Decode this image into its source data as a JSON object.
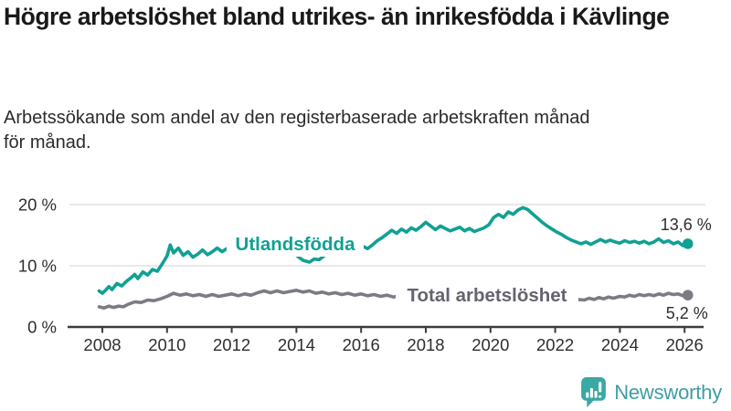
{
  "header": {
    "title": "Högre arbetslöshet bland utrikes- än inrikesfödda i Kävlinge",
    "subtitle": "Arbetssökande som andel av den registerbaserade arbetskraften månad för månad."
  },
  "footer": {
    "brand": "Newsworthy"
  },
  "colors": {
    "accent_teal": "#11A094",
    "series_gray": "#7B7B83",
    "label_gray": "#64646E",
    "axis": "#3C3C3C",
    "grid": "#DADADA",
    "text_dark": "#191919",
    "tick_text": "#2E2E2E",
    "logo_teal": "#3E9DA3"
  },
  "chart_data": {
    "type": "line",
    "title": "Högre arbetslöshet bland utrikes- än inrikesfödda i Kävlinge",
    "xlabel": "",
    "ylabel": "",
    "grid": "horizontal",
    "legend_position": "inline-labels",
    "x_range": [
      2007.9,
      2026.1
    ],
    "ylim": [
      0,
      21.5
    ],
    "x_tick_values": [
      2008,
      2010,
      2012,
      2014,
      2016,
      2018,
      2020,
      2022,
      2024,
      2026
    ],
    "x_tick_labels": [
      "2008",
      "2010",
      "2012",
      "2014",
      "2016",
      "2018",
      "2020",
      "2022",
      "2024",
      "2026"
    ],
    "y_tick_values": [
      0,
      10,
      20
    ],
    "y_tick_labels": [
      "0 %",
      "10 %",
      "20 %"
    ],
    "series": [
      {
        "name": "Utlandsfödda",
        "color": "#11A094",
        "end_label": "13,6 %",
        "end_value": 13.6,
        "points": [
          [
            2007.9,
            5.9
          ],
          [
            2008.0,
            5.5
          ],
          [
            2008.1,
            6.0
          ],
          [
            2008.2,
            6.6
          ],
          [
            2008.3,
            6.1
          ],
          [
            2008.45,
            7.1
          ],
          [
            2008.6,
            6.7
          ],
          [
            2008.75,
            7.5
          ],
          [
            2008.9,
            8.1
          ],
          [
            2009.0,
            8.6
          ],
          [
            2009.1,
            7.9
          ],
          [
            2009.25,
            9.0
          ],
          [
            2009.4,
            8.5
          ],
          [
            2009.55,
            9.4
          ],
          [
            2009.7,
            9.1
          ],
          [
            2009.85,
            10.3
          ],
          [
            2010.0,
            11.6
          ],
          [
            2010.1,
            13.4
          ],
          [
            2010.2,
            12.1
          ],
          [
            2010.35,
            12.9
          ],
          [
            2010.5,
            11.7
          ],
          [
            2010.65,
            12.3
          ],
          [
            2010.8,
            11.4
          ],
          [
            2010.95,
            11.9
          ],
          [
            2011.1,
            12.6
          ],
          [
            2011.25,
            11.8
          ],
          [
            2011.4,
            12.3
          ],
          [
            2011.55,
            12.9
          ],
          [
            2011.7,
            12.3
          ],
          [
            2011.85,
            12.8
          ],
          [
            2012.0,
            12.4
          ],
          [
            2012.15,
            13.0
          ],
          [
            2012.3,
            12.6
          ],
          [
            2012.45,
            13.1
          ],
          [
            2012.6,
            12.7
          ],
          [
            2012.75,
            13.2
          ],
          [
            2012.9,
            12.9
          ],
          [
            2013.05,
            13.4
          ],
          [
            2013.2,
            13.0
          ],
          [
            2013.35,
            13.3
          ],
          [
            2013.5,
            12.9
          ],
          [
            2013.65,
            13.1
          ],
          [
            2013.8,
            12.4
          ],
          [
            2014.0,
            11.7
          ],
          [
            2014.2,
            10.9
          ],
          [
            2014.4,
            10.6
          ],
          [
            2014.55,
            11.1
          ],
          [
            2014.7,
            11.0
          ],
          [
            2014.85,
            11.6
          ],
          [
            2015.0,
            12.2
          ],
          [
            2015.15,
            12.9
          ],
          [
            2015.3,
            12.5
          ],
          [
            2015.45,
            13.0
          ],
          [
            2015.6,
            13.3
          ],
          [
            2015.75,
            13.5
          ],
          [
            2015.9,
            12.9
          ],
          [
            2016.05,
            13.2
          ],
          [
            2016.2,
            12.8
          ],
          [
            2016.35,
            13.4
          ],
          [
            2016.5,
            14.1
          ],
          [
            2016.65,
            14.6
          ],
          [
            2016.8,
            15.2
          ],
          [
            2016.95,
            15.8
          ],
          [
            2017.1,
            15.3
          ],
          [
            2017.25,
            16.0
          ],
          [
            2017.4,
            15.5
          ],
          [
            2017.55,
            16.2
          ],
          [
            2017.7,
            15.8
          ],
          [
            2017.85,
            16.4
          ],
          [
            2018.0,
            17.1
          ],
          [
            2018.15,
            16.5
          ],
          [
            2018.3,
            15.9
          ],
          [
            2018.45,
            16.5
          ],
          [
            2018.6,
            16.1
          ],
          [
            2018.75,
            15.7
          ],
          [
            2018.9,
            16.0
          ],
          [
            2019.05,
            16.3
          ],
          [
            2019.2,
            15.7
          ],
          [
            2019.35,
            16.1
          ],
          [
            2019.5,
            15.6
          ],
          [
            2019.65,
            15.9
          ],
          [
            2019.8,
            16.2
          ],
          [
            2019.95,
            16.7
          ],
          [
            2020.1,
            17.9
          ],
          [
            2020.25,
            18.4
          ],
          [
            2020.4,
            17.9
          ],
          [
            2020.55,
            18.8
          ],
          [
            2020.7,
            18.4
          ],
          [
            2020.85,
            19.1
          ],
          [
            2021.0,
            19.5
          ],
          [
            2021.15,
            19.2
          ],
          [
            2021.3,
            18.5
          ],
          [
            2021.45,
            17.8
          ],
          [
            2021.6,
            17.1
          ],
          [
            2021.75,
            16.5
          ],
          [
            2021.9,
            16.0
          ],
          [
            2022.05,
            15.5
          ],
          [
            2022.2,
            15.1
          ],
          [
            2022.35,
            14.6
          ],
          [
            2022.5,
            14.2
          ],
          [
            2022.65,
            13.9
          ],
          [
            2022.8,
            13.6
          ],
          [
            2022.95,
            13.9
          ],
          [
            2023.1,
            13.5
          ],
          [
            2023.25,
            13.9
          ],
          [
            2023.4,
            14.3
          ],
          [
            2023.55,
            13.9
          ],
          [
            2023.7,
            14.2
          ],
          [
            2023.85,
            13.9
          ],
          [
            2024.0,
            13.7
          ],
          [
            2024.15,
            14.1
          ],
          [
            2024.3,
            13.8
          ],
          [
            2024.45,
            14.0
          ],
          [
            2024.6,
            13.7
          ],
          [
            2024.75,
            14.0
          ],
          [
            2024.9,
            13.6
          ],
          [
            2025.05,
            13.9
          ],
          [
            2025.2,
            14.4
          ],
          [
            2025.35,
            13.8
          ],
          [
            2025.5,
            14.1
          ],
          [
            2025.65,
            13.6
          ],
          [
            2025.8,
            13.9
          ],
          [
            2025.95,
            13.3
          ],
          [
            2026.1,
            13.6
          ]
        ]
      },
      {
        "name": "Total arbetslöshet",
        "color": "#7B7B83",
        "end_label": "5,2 %",
        "end_value": 5.2,
        "points": [
          [
            2007.9,
            3.3
          ],
          [
            2008.05,
            3.1
          ],
          [
            2008.2,
            3.4
          ],
          [
            2008.35,
            3.2
          ],
          [
            2008.5,
            3.4
          ],
          [
            2008.65,
            3.3
          ],
          [
            2008.8,
            3.7
          ],
          [
            2009.0,
            4.1
          ],
          [
            2009.2,
            4.0
          ],
          [
            2009.4,
            4.4
          ],
          [
            2009.6,
            4.3
          ],
          [
            2009.8,
            4.6
          ],
          [
            2010.0,
            5.0
          ],
          [
            2010.2,
            5.5
          ],
          [
            2010.4,
            5.2
          ],
          [
            2010.6,
            5.4
          ],
          [
            2010.8,
            5.1
          ],
          [
            2011.0,
            5.3
          ],
          [
            2011.2,
            5.0
          ],
          [
            2011.4,
            5.3
          ],
          [
            2011.6,
            5.0
          ],
          [
            2011.8,
            5.2
          ],
          [
            2012.0,
            5.4
          ],
          [
            2012.2,
            5.1
          ],
          [
            2012.4,
            5.4
          ],
          [
            2012.6,
            5.2
          ],
          [
            2012.8,
            5.6
          ],
          [
            2013.0,
            5.9
          ],
          [
            2013.2,
            5.6
          ],
          [
            2013.4,
            5.9
          ],
          [
            2013.6,
            5.6
          ],
          [
            2013.8,
            5.8
          ],
          [
            2014.0,
            6.0
          ],
          [
            2014.2,
            5.7
          ],
          [
            2014.4,
            5.9
          ],
          [
            2014.6,
            5.5
          ],
          [
            2014.8,
            5.7
          ],
          [
            2015.0,
            5.4
          ],
          [
            2015.2,
            5.6
          ],
          [
            2015.4,
            5.3
          ],
          [
            2015.6,
            5.5
          ],
          [
            2015.8,
            5.2
          ],
          [
            2016.0,
            5.4
          ],
          [
            2016.2,
            5.1
          ],
          [
            2016.4,
            5.3
          ],
          [
            2016.6,
            5.0
          ],
          [
            2016.8,
            5.2
          ],
          [
            2017.0,
            4.9
          ],
          [
            2017.2,
            5.1
          ],
          [
            2017.4,
            4.8
          ],
          [
            2017.6,
            5.0
          ],
          [
            2017.8,
            4.7
          ],
          [
            2018.0,
            4.9
          ],
          [
            2018.25,
            4.6
          ],
          [
            2018.5,
            4.8
          ],
          [
            2018.75,
            4.6
          ],
          [
            2019.0,
            4.5
          ],
          [
            2019.25,
            4.7
          ],
          [
            2019.5,
            4.9
          ],
          [
            2019.75,
            5.1
          ],
          [
            2020.0,
            5.3
          ],
          [
            2020.25,
            5.7
          ],
          [
            2020.5,
            5.9
          ],
          [
            2020.75,
            5.7
          ],
          [
            2021.0,
            5.5
          ],
          [
            2021.25,
            5.2
          ],
          [
            2021.5,
            5.0
          ],
          [
            2021.75,
            4.9
          ],
          [
            2022.0,
            4.8
          ],
          [
            2022.25,
            4.6
          ],
          [
            2022.5,
            4.4
          ],
          [
            2022.7,
            4.5
          ],
          [
            2022.9,
            4.4
          ],
          [
            2023.05,
            4.7
          ],
          [
            2023.2,
            4.5
          ],
          [
            2023.35,
            4.8
          ],
          [
            2023.5,
            4.6
          ],
          [
            2023.65,
            4.9
          ],
          [
            2023.8,
            4.7
          ],
          [
            2024.0,
            5.0
          ],
          [
            2024.15,
            4.9
          ],
          [
            2024.3,
            5.2
          ],
          [
            2024.45,
            5.0
          ],
          [
            2024.6,
            5.3
          ],
          [
            2024.75,
            5.1
          ],
          [
            2024.9,
            5.3
          ],
          [
            2025.05,
            5.1
          ],
          [
            2025.2,
            5.4
          ],
          [
            2025.35,
            5.2
          ],
          [
            2025.5,
            5.5
          ],
          [
            2025.65,
            5.3
          ],
          [
            2025.8,
            5.4
          ],
          [
            2025.95,
            5.1
          ],
          [
            2026.1,
            5.2
          ]
        ]
      }
    ]
  }
}
